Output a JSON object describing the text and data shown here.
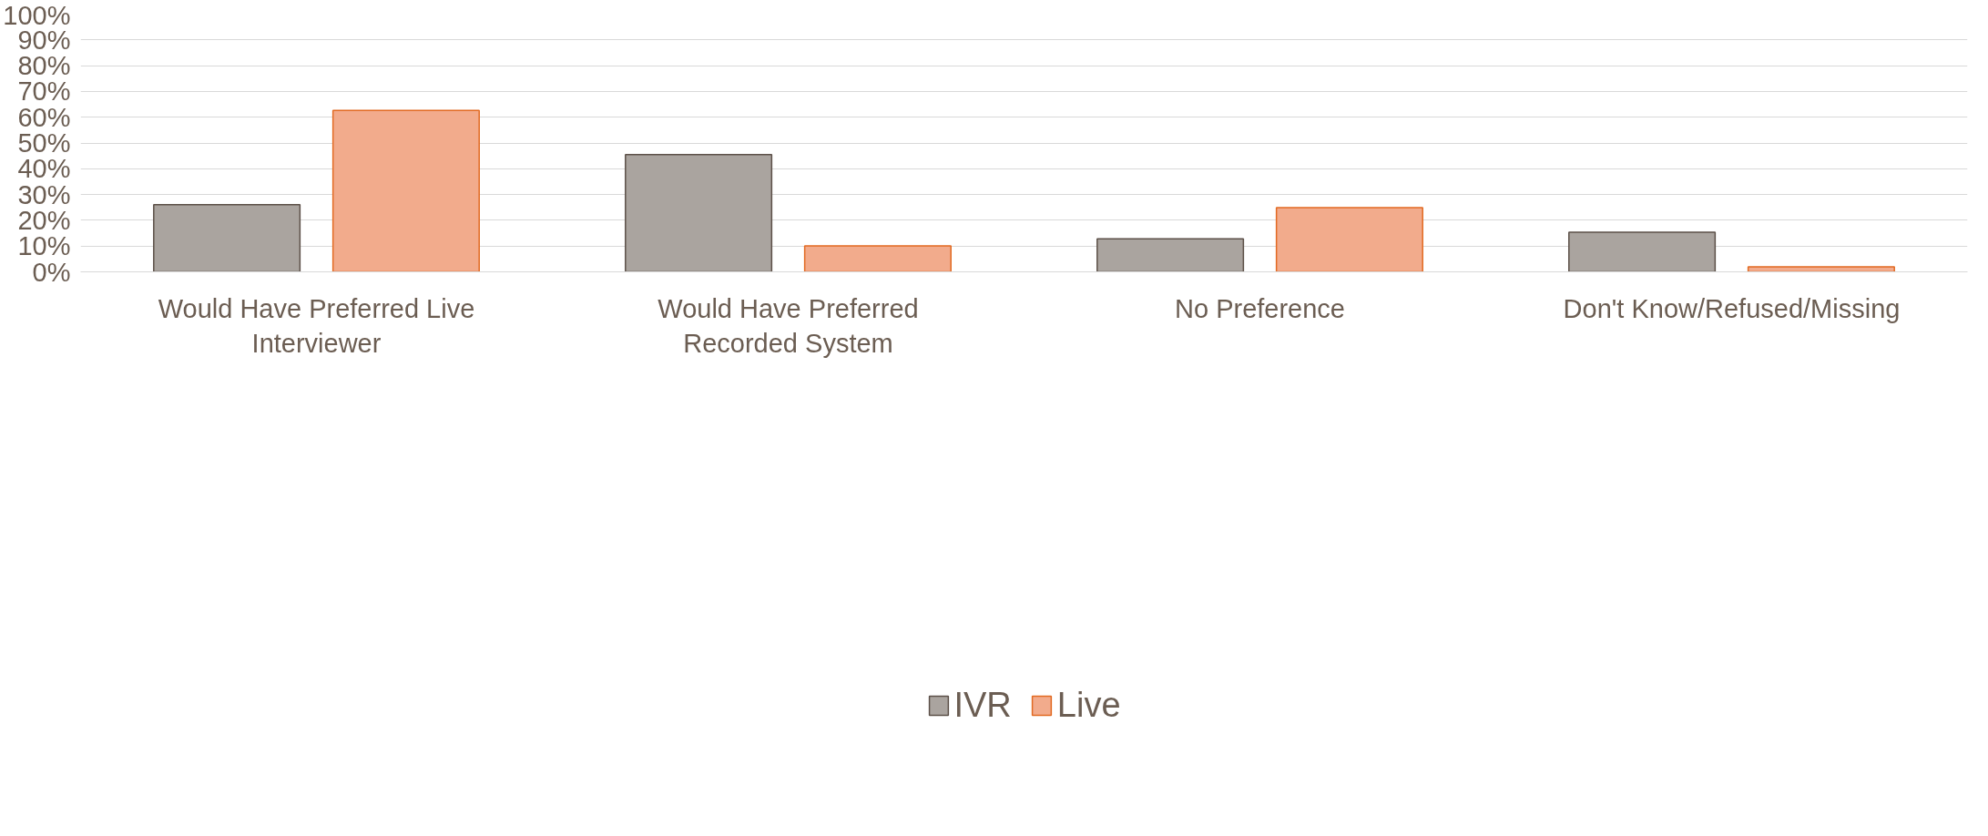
{
  "chart_data": {
    "type": "bar",
    "categories": [
      "Would Have Preferred Live Interviewer",
      "Would Have Preferred Recorded System",
      "No Preference",
      "Don't Know/Refused/Missing"
    ],
    "series": [
      {
        "name": "IVR",
        "color": "#aaa49f",
        "values": [
          26.1,
          45.5,
          12.8,
          15.4
        ]
      },
      {
        "name": "Live",
        "color": "#f2ab8c",
        "values": [
          62.6,
          10.1,
          24.9,
          1.9
        ]
      }
    ],
    "ylim": [
      0,
      100
    ],
    "yticks": [
      {
        "value": 0,
        "label": "0%"
      },
      {
        "value": 10,
        "label": "10%"
      },
      {
        "value": 20,
        "label": "20%"
      },
      {
        "value": 30,
        "label": "30%"
      },
      {
        "value": 40,
        "label": "40%"
      },
      {
        "value": 50,
        "label": "50%"
      },
      {
        "value": 60,
        "label": "60%"
      },
      {
        "value": 70,
        "label": "70%"
      },
      {
        "value": 80,
        "label": "80%"
      },
      {
        "value": 90,
        "label": "90%"
      },
      {
        "value": 100,
        "label": "100%"
      }
    ],
    "grid": "y",
    "legend": "bottom"
  }
}
